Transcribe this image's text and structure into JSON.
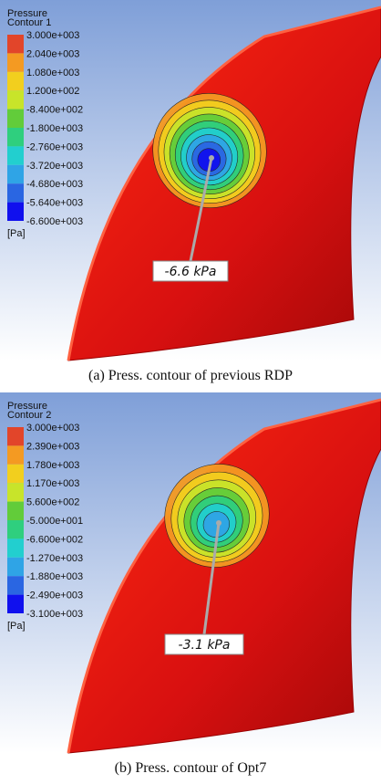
{
  "legend_colors": [
    "#e2452a",
    "#f49a22",
    "#f2cf1e",
    "#c8e42a",
    "#62cc3a",
    "#2fcf7e",
    "#22cfcf",
    "#2fa4e6",
    "#2a66e2",
    "#1010ee"
  ],
  "panels": [
    {
      "legend_title": "Pressure",
      "legend_subtitle": "Contour 1",
      "levels": [
        "3.000e+003",
        "2.040e+003",
        "1.080e+003",
        "1.200e+002",
        "-8.400e+002",
        "-1.800e+003",
        "-2.760e+003",
        "-3.720e+003",
        "-4.680e+003",
        "-5.640e+003",
        "-6.600e+003"
      ],
      "unit": "[Pa]",
      "annotation": "-6.6 kPa",
      "caption": "(a) Press. contour of previous RDP"
    },
    {
      "legend_title": "Pressure",
      "legend_subtitle": "Contour 2",
      "levels": [
        "3.000e+003",
        "2.390e+003",
        "1.780e+003",
        "1.170e+003",
        "5.600e+002",
        "-5.000e+001",
        "-6.600e+002",
        "-1.270e+003",
        "-1.880e+003",
        "-2.490e+003",
        "-3.100e+003"
      ],
      "unit": "[Pa]",
      "annotation": "-3.1 kPa",
      "caption": "(b) Press. contour of Opt7"
    }
  ]
}
